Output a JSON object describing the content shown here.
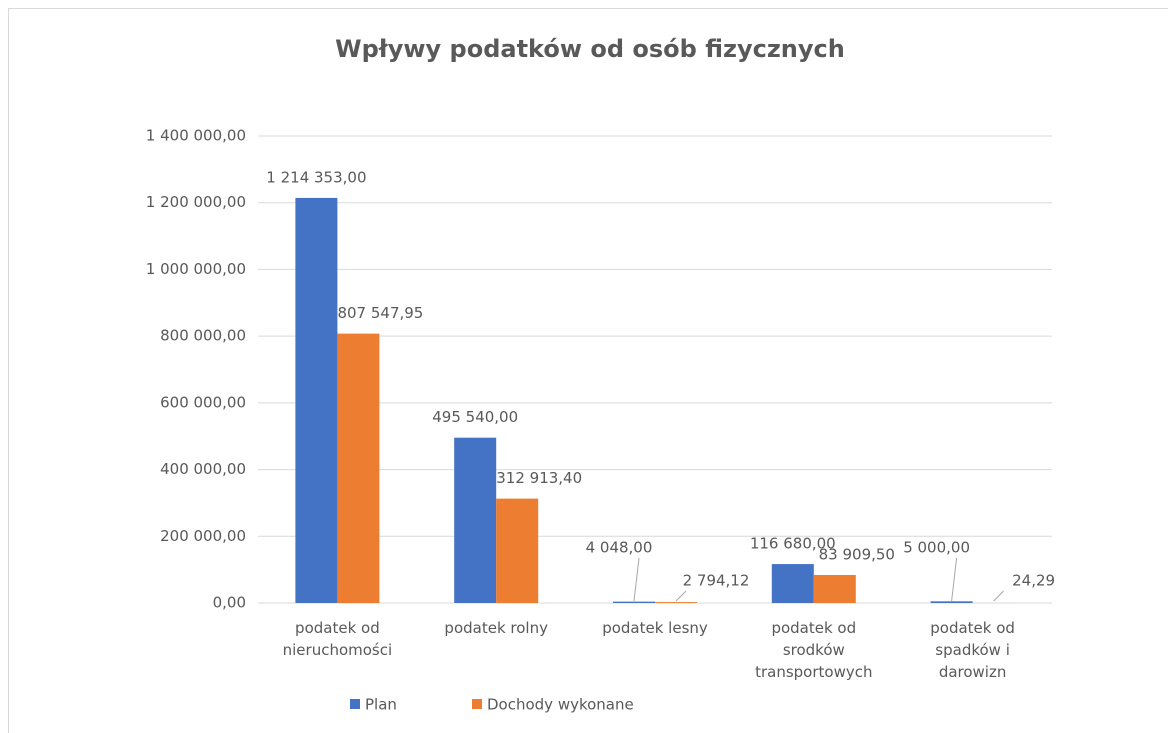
{
  "chart_data": {
    "type": "bar",
    "title": "Wpływy podatków od osób fizycznych",
    "categories": [
      "podatek od\nnieruchomości",
      "podatek rolny",
      "podatek lesny",
      "podatek od\nsrodków\ntransportowych",
      "podatek od\nspadków i\ndarowizn"
    ],
    "series": [
      {
        "name": "Plan",
        "color": "#4472c4",
        "values": [
          1214353,
          495540,
          4048,
          116680,
          5000
        ],
        "value_labels": [
          "1 214 353,00",
          "495 540,00",
          "4 048,00",
          "116 680,00",
          "5 000,00"
        ]
      },
      {
        "name": "Dochody wykonane",
        "color": "#ed7d31",
        "values": [
          807547.95,
          312913.4,
          2794.12,
          83909.5,
          24.29
        ],
        "value_labels": [
          "807 547,95",
          "312 913,40",
          "2 794,12",
          "83 909,50",
          "24,29"
        ]
      }
    ],
    "ylim": [
      0,
      1400000
    ],
    "yticks": [
      {
        "value": 0,
        "label": "0,00"
      },
      {
        "value": 200000,
        "label": "200 000,00"
      },
      {
        "value": 400000,
        "label": "400 000,00"
      },
      {
        "value": 600000,
        "label": "600 000,00"
      },
      {
        "value": 800000,
        "label": "800 000,00"
      },
      {
        "value": 1000000,
        "label": "1 000 000,00"
      },
      {
        "value": 1200000,
        "label": "1 200 000,00"
      },
      {
        "value": 1400000,
        "label": "1 400 000,00"
      }
    ],
    "grid": true,
    "legend": "bottom"
  }
}
